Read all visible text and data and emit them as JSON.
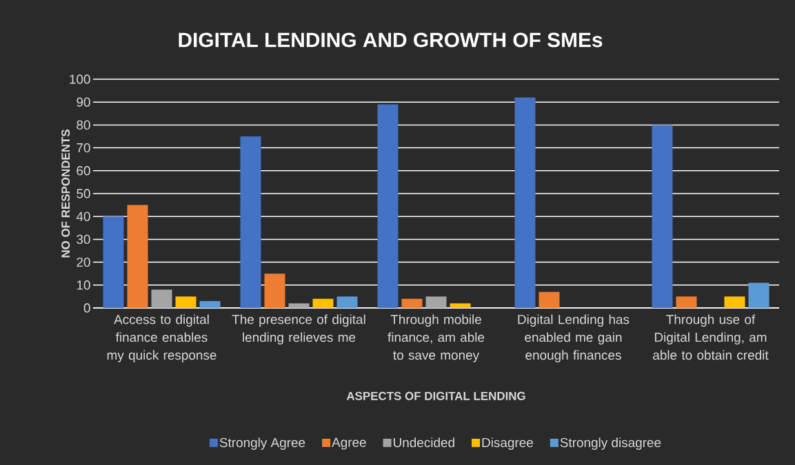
{
  "chart_data": {
    "type": "bar",
    "title": "DIGITAL LENDING AND GROWTH OF SMEs",
    "xlabel": "ASPECTS OF DIGITAL LENDING",
    "ylabel": "NO OF RESPONDENTS",
    "categories": [
      "Access to digital finance enables my quick response",
      "The presence of digital lending relieves me",
      "Through mobile finance, am able to save money",
      "Digital Lending has enabled me gain enough finances",
      "Through use of Digital Lending, am able to obtain credit"
    ],
    "series": [
      {
        "name": "Strongly Agree",
        "color": "#4472c4",
        "values": [
          40,
          75,
          89,
          92,
          80
        ]
      },
      {
        "name": "Agree",
        "color": "#ed7d31",
        "values": [
          45,
          15,
          4,
          7,
          5
        ]
      },
      {
        "name": "Undecided",
        "color": "#a5a5a5",
        "values": [
          8,
          2,
          5,
          0,
          0
        ]
      },
      {
        "name": "Disagree",
        "color": "#ffc000",
        "values": [
          5,
          4,
          2,
          0,
          5
        ]
      },
      {
        "name": "Strongly disagree",
        "color": "#5b9bd5",
        "values": [
          3,
          5,
          0,
          0,
          11
        ]
      }
    ],
    "ylim": [
      0,
      100
    ],
    "yticks": [
      0,
      10,
      20,
      30,
      40,
      50,
      60,
      70,
      80,
      90,
      100
    ],
    "grid": "y",
    "legend": "bottom"
  }
}
